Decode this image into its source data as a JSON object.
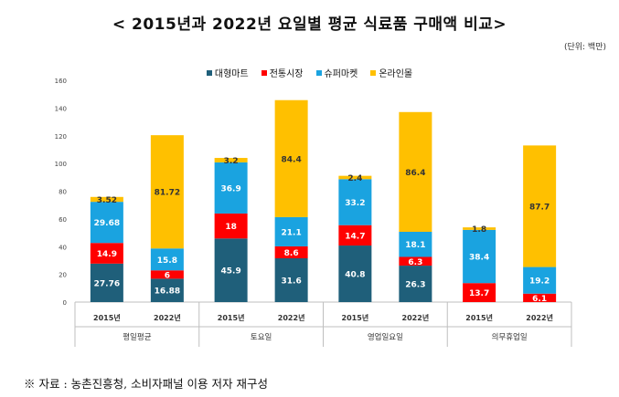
{
  "page": {
    "title": "< 2015년과 2022년 요일별 평균 식료품 구매액 비교>",
    "unit": "(단위: 백만)",
    "source": "※ 자료 : 농촌진흥청, 소비자패널 이용 저자 재구성"
  },
  "colors": {
    "대형마트": "#1f5f7a",
    "전통시장": "#ff0000",
    "슈퍼마켓": "#1aa3e0",
    "온라인몰": "#ffc000"
  },
  "chart_data": {
    "type": "bar",
    "stacked": true,
    "ylim": [
      0,
      160
    ],
    "yticks": [
      0,
      20,
      40,
      60,
      80,
      100,
      120,
      140,
      160
    ],
    "grid": false,
    "legend_position": "top-center",
    "groups": [
      "평일평균",
      "토요일",
      "영업일요일",
      "의무휴업일"
    ],
    "categories": [
      "2015년",
      "2022년",
      "2015년",
      "2022년",
      "2015년",
      "2022년",
      "2015년",
      "2022년"
    ],
    "series": [
      {
        "name": "대형마트",
        "values": [
          27.76,
          16.88,
          45.9,
          31.6,
          40.8,
          26.3,
          0,
          0
        ],
        "labels": [
          "27.76",
          "16.88",
          "45.9",
          "31.6",
          "40.8",
          "26.3",
          "",
          ""
        ]
      },
      {
        "name": "전통시장",
        "values": [
          14.9,
          6,
          18,
          8.6,
          14.7,
          6.3,
          13.7,
          6.1
        ],
        "labels": [
          "14.9",
          "6",
          "18",
          "8.6",
          "14.7",
          "6.3",
          "13.7",
          "6.1"
        ]
      },
      {
        "name": "슈퍼마켓",
        "values": [
          29.68,
          15.8,
          36.9,
          21.1,
          33.2,
          18.1,
          38.4,
          19.2
        ],
        "labels": [
          "29.68",
          "15.8",
          "36.9",
          "21.1",
          "33.2",
          "18.1",
          "38.4",
          "19.2"
        ]
      },
      {
        "name": "온라인몰",
        "values": [
          3.52,
          81.72,
          3.2,
          84.4,
          2.4,
          86.4,
          1.8,
          87.7
        ],
        "labels": [
          "3.52",
          "81.72",
          "3.2",
          "84.4",
          "2.4",
          "86.4",
          "1.8",
          "87.7"
        ]
      }
    ]
  }
}
